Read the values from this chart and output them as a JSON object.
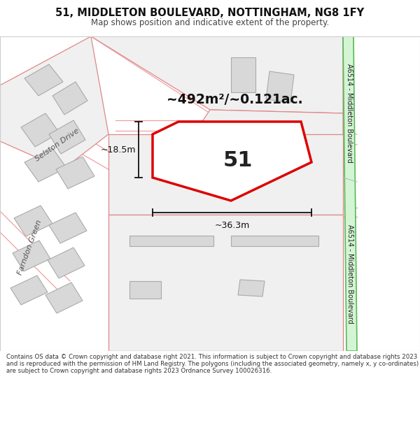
{
  "title_line1": "51, MIDDLETON BOULEVARD, NOTTINGHAM, NG8 1FY",
  "title_line2": "Map shows position and indicative extent of the property.",
  "area_text": "~492m²/~0.121ac.",
  "property_number": "51",
  "dim_width": "~36.3m",
  "dim_height": "~18.5m",
  "road_label_top": "A6514 - Middleton Boulevard",
  "road_label_bottom": "A6514 - Middleton Boulevard",
  "road_label_selston": "Selston Drive",
  "road_label_farndon": "Farndon Green",
  "footer_text": "Contains OS data © Crown copyright and database right 2021. This information is subject to Crown copyright and database rights 2023 and is reproduced with the permission of HM Land Registry. The polygons (including the associated geometry, namely x, y co-ordinates) are subject to Crown copyright and database rights 2023 Ordnance Survey 100026316.",
  "map_bg": "#ffffff",
  "road_green_fill": "#d4f5d4",
  "road_green_border": "#5ab85a",
  "property_fill": "#ffffff",
  "property_border": "#dd0000",
  "property_lw": 2.5,
  "parcel_fill": "#f0f0f0",
  "parcel_border": "#e08888",
  "parcel_lw": 0.9,
  "building_fill": "#d8d8d8",
  "building_border": "#aaaaaa",
  "building_lw": 0.8,
  "road_line_color": "#f0a0a0",
  "road_line_lw": 0.9,
  "dim_color": "#111111",
  "title_color": "#111111",
  "footer_color": "#333333"
}
